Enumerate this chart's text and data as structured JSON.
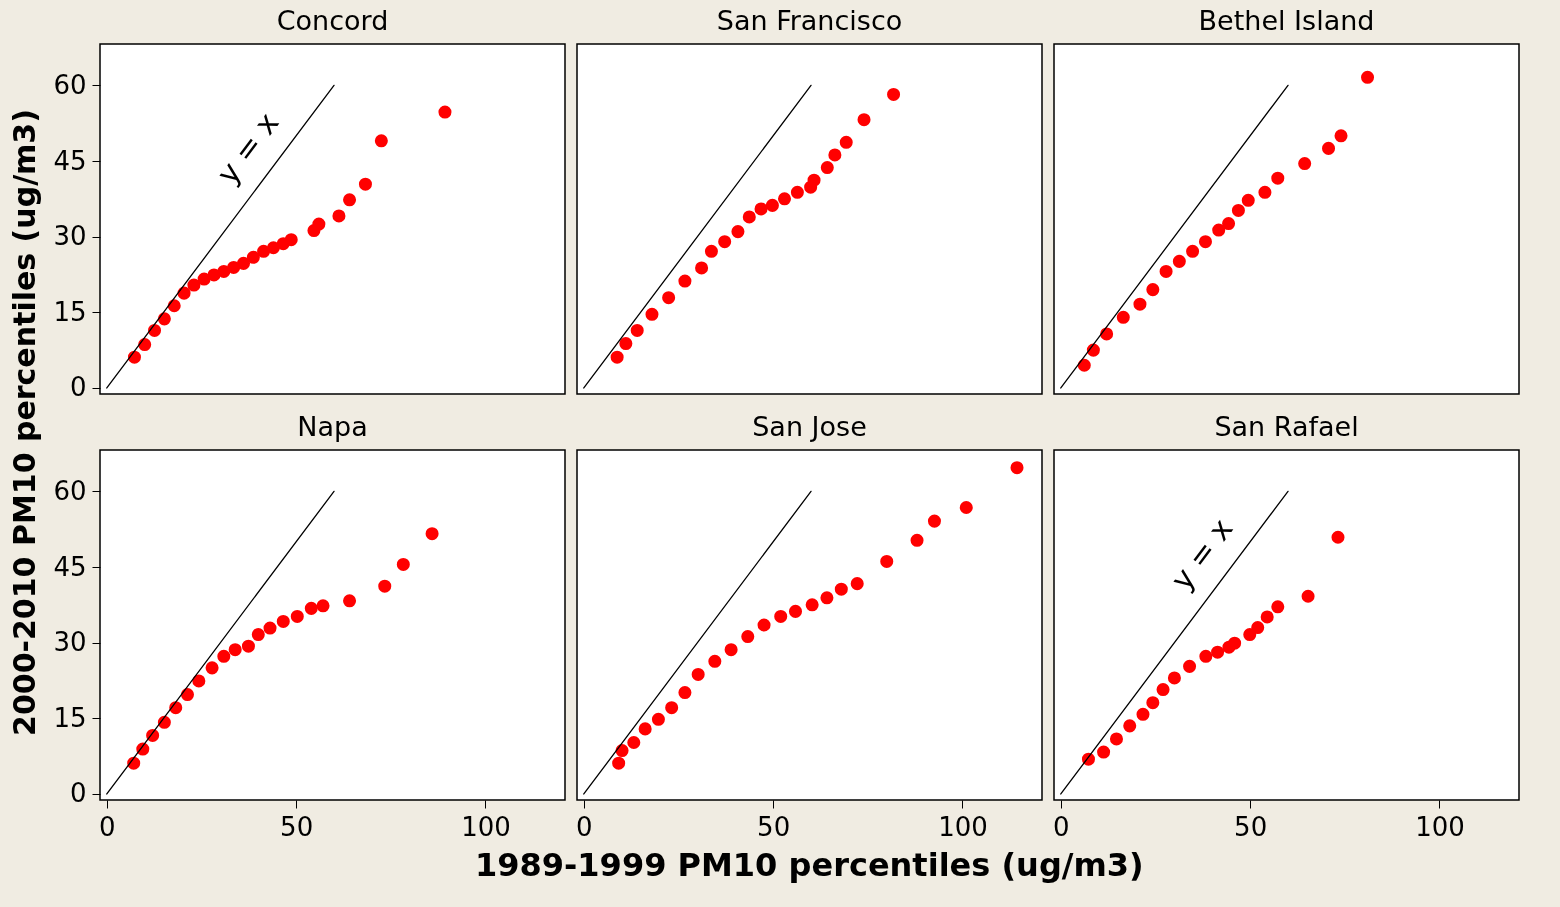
{
  "chart_data": [
    {
      "type": "scatter",
      "title": "Concord",
      "xlim": [
        -1.8,
        121
      ],
      "ylim": [
        -1.2,
        68.2
      ],
      "xticks": [
        0,
        50,
        100
      ],
      "yticks": [
        0,
        15,
        30,
        45,
        60
      ],
      "tick_labels": "y",
      "series": [
        {
          "color": "#ff0000",
          "marker": "circle",
          "x": [
            7.3,
            10,
            12.6,
            15.2,
            17.8,
            20.4,
            23,
            25.7,
            28.3,
            30.9,
            33.5,
            36.1,
            38.7,
            41.4,
            44,
            46.6,
            48.7,
            54.7,
            56,
            61.3,
            64.1,
            68.3,
            72.5,
            89.3
          ],
          "values": [
            6.1,
            8.6,
            11.4,
            13.7,
            16.3,
            18.8,
            20.4,
            21.6,
            22.4,
            23.1,
            23.9,
            24.7,
            25.9,
            27.1,
            27.8,
            28.6,
            29.4,
            31.2,
            32.5,
            34.1,
            37.3,
            40.4,
            49,
            54.7
          ]
        },
        {
          "type": "line",
          "color": "#000000",
          "x": [
            0,
            60
          ],
          "values": [
            0,
            60
          ]
        }
      ],
      "annotations": [
        "y = x"
      ]
    },
    {
      "type": "scatter",
      "title": "San Francisco",
      "xlim": [
        -1.8,
        121
      ],
      "ylim": [
        -1.2,
        68.2
      ],
      "xticks": [
        0,
        50,
        100
      ],
      "yticks": [
        0,
        15,
        30,
        45,
        60
      ],
      "tick_labels": false,
      "series": [
        {
          "color": "#ff0000",
          "marker": "circle",
          "x": [
            8.8,
            11.1,
            14.1,
            18,
            22.4,
            26.7,
            31.1,
            33.7,
            37.2,
            40.7,
            43.7,
            46.8,
            49.8,
            53,
            56.4,
            59.9,
            60.8,
            64.3,
            66.3,
            69.3,
            74,
            81.8
          ],
          "values": [
            6.1,
            8.8,
            11.4,
            14.6,
            17.9,
            21.2,
            23.8,
            27.1,
            29,
            31,
            33.9,
            35.5,
            36.2,
            37.5,
            38.8,
            39.8,
            41.2,
            43.7,
            46.2,
            48.7,
            53.2,
            58.2
          ]
        },
        {
          "type": "line",
          "color": "#000000",
          "x": [
            0,
            60
          ],
          "values": [
            0,
            60
          ]
        }
      ]
    },
    {
      "type": "scatter",
      "title": "Bethel Island",
      "xlim": [
        -1.8,
        121
      ],
      "ylim": [
        -1.2,
        68.2
      ],
      "xticks": [
        0,
        50,
        100
      ],
      "yticks": [
        0,
        15,
        30,
        45,
        60
      ],
      "tick_labels": false,
      "series": [
        {
          "color": "#ff0000",
          "marker": "circle",
          "x": [
            6.2,
            8.6,
            12.1,
            16.5,
            20.9,
            24.3,
            27.8,
            31.3,
            34.8,
            38.2,
            41.7,
            44.3,
            46.9,
            49.5,
            53.9,
            57.3,
            64.4,
            70.7,
            74,
            81
          ],
          "values": [
            4.5,
            7.5,
            10.7,
            14,
            16.6,
            19.5,
            23.1,
            25.1,
            27.1,
            29,
            31.3,
            32.6,
            35.2,
            37.2,
            38.8,
            41.6,
            44.5,
            47.5,
            50,
            61.6
          ]
        },
        {
          "type": "line",
          "color": "#000000",
          "x": [
            0,
            60
          ],
          "values": [
            0,
            60
          ]
        }
      ]
    },
    {
      "type": "scatter",
      "title": "Napa",
      "ylabel": "2000-2010 PM10 percentiles (ug/m3)",
      "xlim": [
        -1.8,
        121
      ],
      "ylim": [
        -1.2,
        68.2
      ],
      "xticks": [
        0,
        50,
        100
      ],
      "yticks": [
        0,
        15,
        30,
        45,
        60
      ],
      "series": [
        {
          "color": "#ff0000",
          "marker": "circle",
          "x": [
            7.1,
            9.5,
            12.1,
            15.2,
            18.2,
            21.3,
            24.3,
            27.8,
            30.9,
            33.9,
            37.4,
            40,
            43.1,
            46.6,
            50.3,
            54,
            57.1,
            64.1,
            73.4,
            78.3,
            85.9
          ],
          "values": [
            6.1,
            8.9,
            11.6,
            14.2,
            17.1,
            19.7,
            22.4,
            25,
            27.3,
            28.6,
            29.3,
            31.6,
            32.9,
            34.2,
            35.2,
            36.8,
            37.3,
            38.3,
            41.2,
            45.5,
            51.6
          ]
        },
        {
          "type": "line",
          "color": "#000000",
          "x": [
            0,
            60
          ],
          "values": [
            0,
            60
          ]
        }
      ]
    },
    {
      "type": "scatter",
      "title": "San Jose",
      "xlabel": "1989-1999 PM10 percentiles (ug/m3)",
      "xlim": [
        -1.8,
        121
      ],
      "ylim": [
        -1.2,
        68.2
      ],
      "xticks": [
        0,
        50,
        100
      ],
      "yticks": [
        0,
        15,
        30,
        45,
        60
      ],
      "tick_labels": "x",
      "series": [
        {
          "color": "#ff0000",
          "marker": "circle",
          "x": [
            9.2,
            10.1,
            13.2,
            16.2,
            19.7,
            23.2,
            26.7,
            30.2,
            34.6,
            38.9,
            43.3,
            47.6,
            52,
            55.9,
            60.3,
            64.2,
            68,
            72.2,
            80,
            88,
            92.6,
            101,
            114.4
          ],
          "values": [
            6.1,
            8.6,
            10.2,
            12.9,
            14.8,
            17.1,
            20.1,
            23.7,
            26.3,
            28.6,
            31.2,
            33.5,
            35.2,
            36.2,
            37.5,
            38.9,
            40.6,
            41.7,
            46.1,
            50.3,
            54.1,
            56.8,
            64.7
          ]
        },
        {
          "type": "line",
          "color": "#000000",
          "x": [
            0,
            60
          ],
          "values": [
            0,
            60
          ]
        }
      ]
    },
    {
      "type": "scatter",
      "title": "San Rafael",
      "xlim": [
        -1.8,
        121
      ],
      "ylim": [
        -1.2,
        68.2
      ],
      "xticks": [
        0,
        50,
        100
      ],
      "yticks": [
        0,
        15,
        30,
        45,
        60
      ],
      "tick_labels": "x",
      "series": [
        {
          "color": "#ff0000",
          "marker": "circle",
          "x": [
            7.3,
            11.3,
            14.7,
            18.2,
            21.7,
            24.3,
            27,
            30,
            34,
            38.3,
            41.4,
            44.4,
            45.9,
            49.9,
            52,
            54.5,
            57.3,
            65.3,
            73.2
          ],
          "values": [
            6.9,
            8.3,
            10.9,
            13.5,
            15.8,
            18.1,
            20.7,
            23,
            25.3,
            27.3,
            28.1,
            29.1,
            29.9,
            31.6,
            33,
            35.1,
            37.1,
            39.2,
            50.9
          ]
        },
        {
          "type": "line",
          "color": "#000000",
          "x": [
            0,
            60
          ],
          "values": [
            0,
            60
          ]
        }
      ],
      "annotations": [
        "y = x"
      ]
    }
  ]
}
